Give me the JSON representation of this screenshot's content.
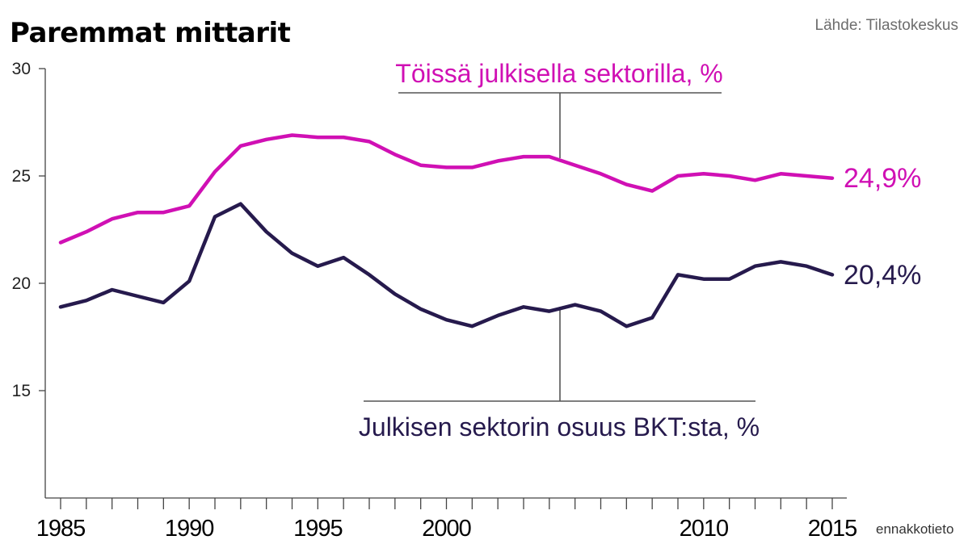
{
  "title": "Paremmat mittarit",
  "source": "Lähde: Tilastokeskus",
  "note": "ennakkotieto",
  "colors": {
    "public_employment": "#d010b4",
    "public_gdp_share": "#261a4d",
    "axis": "#444444",
    "leader": "#555555"
  },
  "chart_data": {
    "type": "line",
    "title": "Paremmat mittarit",
    "x": [
      1985,
      1986,
      1987,
      1988,
      1989,
      1990,
      1991,
      1992,
      1993,
      1994,
      1995,
      1996,
      1997,
      1998,
      1999,
      2000,
      2001,
      2002,
      2003,
      2004,
      2005,
      2006,
      2007,
      2008,
      2009,
      2010,
      2011,
      2012,
      2013,
      2014,
      2015
    ],
    "x_tick_labels": [
      "1985",
      "1990",
      "1995",
      "2000",
      "2010",
      "2015"
    ],
    "y_ticks": [
      15,
      20,
      25,
      30
    ],
    "ylim": [
      10,
      30
    ],
    "xlabel": "",
    "ylabel": "",
    "grid": false,
    "series": [
      {
        "name": "Töissä julkisella sektorilla, %",
        "key": "public_employment",
        "values": [
          21.9,
          22.4,
          23.0,
          23.3,
          23.3,
          23.6,
          25.2,
          26.4,
          26.7,
          26.9,
          26.8,
          26.8,
          26.6,
          26.0,
          25.5,
          25.4,
          25.4,
          25.7,
          25.9,
          25.9,
          25.5,
          25.1,
          24.6,
          24.3,
          25.0,
          25.1,
          25.0,
          24.8,
          25.1,
          25.0,
          24.9
        ],
        "end_label": "24,9%"
      },
      {
        "name": "Julkisen sektorin osuus BKT:sta, %",
        "key": "public_gdp_share",
        "values": [
          18.9,
          19.2,
          19.7,
          19.4,
          19.1,
          20.1,
          23.1,
          23.7,
          22.4,
          21.4,
          20.8,
          21.2,
          20.4,
          19.5,
          18.8,
          18.3,
          18.0,
          18.5,
          18.9,
          18.7,
          19.0,
          18.7,
          18.0,
          18.4,
          20.4,
          20.2,
          20.2,
          20.8,
          21.0,
          20.8,
          20.4
        ],
        "end_label": "20,4%"
      }
    ]
  }
}
